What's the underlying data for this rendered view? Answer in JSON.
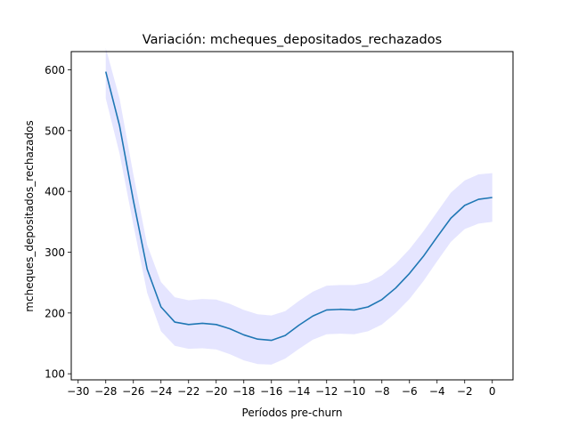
{
  "chart_data": {
    "type": "line",
    "title": "Variación: mcheques_depositados_rechazados",
    "xlabel": "Períodos pre-churn",
    "ylabel": "mcheques_depositados_rechazados",
    "xlim": [
      -30.5,
      1.5
    ],
    "ylim": [
      90,
      630
    ],
    "xticks": [
      -30,
      -28,
      -26,
      -24,
      -22,
      -20,
      -18,
      -16,
      -14,
      -12,
      -10,
      -8,
      -6,
      -4,
      -2,
      0
    ],
    "yticks": [
      100,
      200,
      300,
      400,
      500,
      600
    ],
    "grid": false,
    "legend": "none",
    "series": [
      {
        "x": [
          -28,
          -27,
          -26,
          -25,
          -24,
          -23,
          -22,
          -21,
          -20,
          -19,
          -18,
          -17,
          -16,
          -15,
          -14,
          -13,
          -12,
          -11,
          -10,
          -9,
          -8,
          -7,
          -6,
          -5,
          -4,
          -3,
          -2,
          -1,
          0
        ],
        "y": [
          597,
          508,
          385,
          272,
          210,
          185,
          181,
          183,
          181,
          174,
          164,
          157,
          155,
          163,
          180,
          195,
          205,
          206,
          205,
          210,
          222,
          241,
          265,
          293,
          325,
          356,
          377,
          387,
          390
        ],
        "lower": [
          553,
          462,
          345,
          233,
          170,
          146,
          141,
          142,
          140,
          132,
          122,
          116,
          115,
          125,
          141,
          156,
          165,
          166,
          165,
          170,
          181,
          200,
          223,
          252,
          285,
          317,
          338,
          347,
          350
        ],
        "upper": [
          636,
          553,
          428,
          312,
          251,
          226,
          221,
          223,
          222,
          215,
          205,
          198,
          196,
          203,
          220,
          235,
          245,
          246,
          246,
          250,
          262,
          281,
          305,
          334,
          366,
          398,
          418,
          428,
          430
        ]
      }
    ],
    "colors": {
      "line": "#1f77b4",
      "band": "#0000ff"
    }
  }
}
